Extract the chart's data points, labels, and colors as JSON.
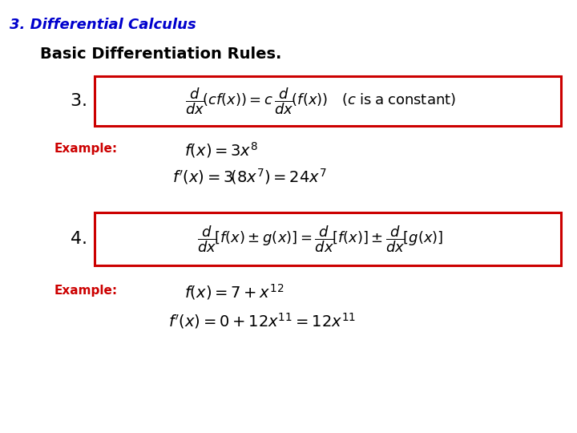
{
  "title": "3. Differential Calculus",
  "subtitle": "Basic Differentiation Rules.",
  "title_color": "#0000CD",
  "subtitle_color": "#000000",
  "example_color": "#CC0000",
  "box_color": "#CC0000",
  "background_color": "#FFFFFF",
  "rule3_label": "3.",
  "rule3_formula": "$\\dfrac{d}{dx}\\!\\left(cf(x)\\right)=c\\,\\dfrac{d}{dx}\\!\\left(f(x)\\right)\\quad\\left(c\\;\\mathrm{is\\;a\\;constant}\\right)$",
  "example1_label": "Example:",
  "example1_line1": "$f(x)=3x^{8}$",
  "example1_line2": "$f'(x)=3\\!\\left(8x^{7}\\right)=24x^{7}$",
  "rule4_label": "4.",
  "rule4_formula": "$\\dfrac{d}{dx}\\!\\left[f(x)\\pm g(x)\\right]=\\dfrac{d}{dx}\\!\\left[f(x)\\right]\\pm\\dfrac{d}{dx}\\!\\left[g(x)\\right]$",
  "example2_label": "Example:",
  "example2_line1": "$f(x)=7+x^{12}$",
  "example2_line2": "$f'(x)=0+12x^{11}=12x^{11}$"
}
